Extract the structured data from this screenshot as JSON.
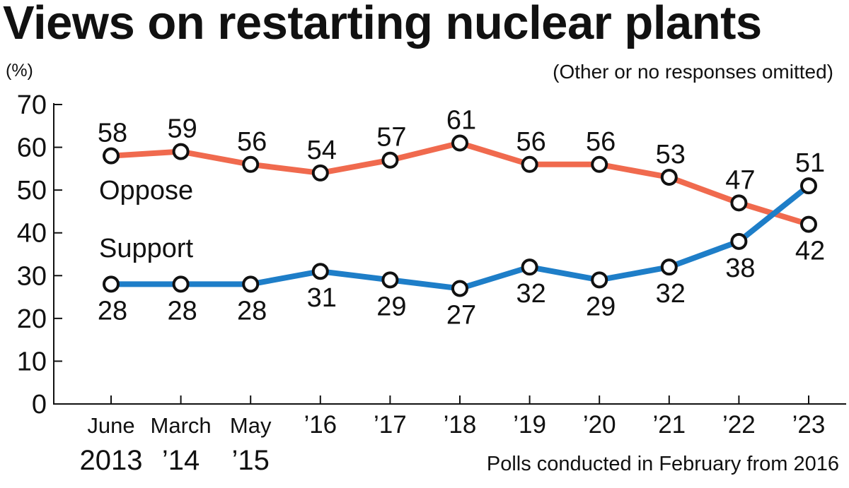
{
  "chart_data": {
    "type": "line",
    "title": "Views on restarting nuclear plants",
    "ylabel": "(%)",
    "note": "(Other or no responses omitted)",
    "footnote": "Polls conducted in February from 2016",
    "ylim": [
      0,
      70
    ],
    "yticks": [
      "0",
      "10",
      "20",
      "30",
      "40",
      "50",
      "60",
      "70"
    ],
    "categories": [
      [
        "June",
        "2013"
      ],
      [
        "March",
        "’14"
      ],
      [
        "May",
        "’15"
      ],
      [
        "’16"
      ],
      [
        "’17"
      ],
      [
        "’18"
      ],
      [
        "’19"
      ],
      [
        "’20"
      ],
      [
        "’21"
      ],
      [
        "’22"
      ],
      [
        "’23"
      ]
    ],
    "series": [
      {
        "name": "Oppose",
        "color": "#f06a4e",
        "label_position": "above",
        "values": [
          58,
          59,
          56,
          54,
          57,
          61,
          56,
          56,
          53,
          47,
          42
        ]
      },
      {
        "name": "Support",
        "color": "#1e7ec8",
        "label_position": "below",
        "values": [
          28,
          28,
          28,
          31,
          29,
          27,
          32,
          29,
          32,
          38,
          51
        ]
      }
    ],
    "grid": false,
    "legend": "inline"
  }
}
